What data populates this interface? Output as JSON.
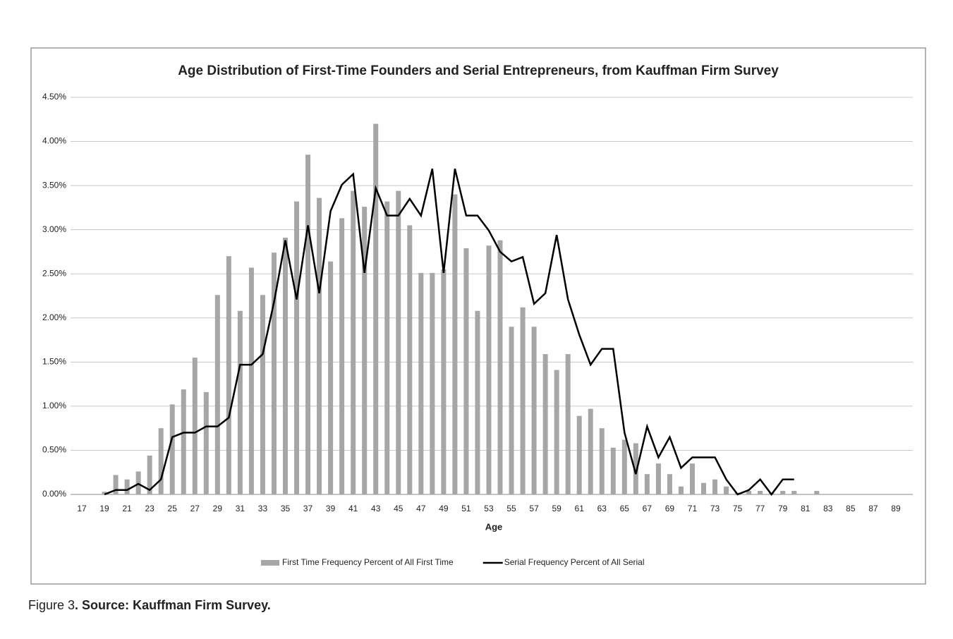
{
  "chart_data": {
    "type": "bar",
    "title": "Age Distribution of First-Time Founders and Serial Entrepreneurs, from Kauffman Firm Survey",
    "x_label": "Age",
    "categories": [
      17,
      null,
      19,
      null,
      21,
      null,
      23,
      null,
      25,
      null,
      27,
      null,
      29,
      null,
      31,
      null,
      33,
      null,
      35,
      null,
      37,
      null,
      39,
      null,
      41,
      null,
      43,
      null,
      45,
      null,
      47,
      null,
      49,
      null,
      51,
      null,
      53,
      null,
      55,
      null,
      57,
      null,
      59,
      null,
      61,
      null,
      63,
      null,
      65,
      null,
      67,
      null,
      69,
      null,
      71,
      null,
      73,
      null,
      75,
      null,
      77,
      null,
      79,
      null,
      81,
      null,
      83,
      null,
      85,
      null,
      87,
      null,
      89,
      null
    ],
    "series": [
      {
        "name": "First Time Frequency Percent of All First Time",
        "type": "bar",
        "color": "#a6a6a6",
        "values": [
          null,
          null,
          0.03,
          0.22,
          0.17,
          0.26,
          0.44,
          0.75,
          1.02,
          1.19,
          1.55,
          1.16,
          2.26,
          2.7,
          2.08,
          2.57,
          2.26,
          2.74,
          2.91,
          3.32,
          3.85,
          3.36,
          2.64,
          3.13,
          3.44,
          3.26,
          4.2,
          3.32,
          3.44,
          3.05,
          2.51,
          2.51,
          2.55,
          3.4,
          2.79,
          2.08,
          2.82,
          2.88,
          1.9,
          2.12,
          1.9,
          1.59,
          1.41,
          1.59,
          0.89,
          0.97,
          0.75,
          0.53,
          0.62,
          0.58,
          0.23,
          0.35,
          0.23,
          0.09,
          0.35,
          0.13,
          0.17,
          0.09,
          0.02,
          0.04,
          0.04,
          0.02,
          0.04,
          0.04,
          0,
          0.04,
          null,
          null,
          null,
          null,
          null,
          null,
          null,
          null
        ]
      },
      {
        "name": "Serial Frequency Percent of All Serial",
        "type": "line",
        "color": "#000000",
        "values": [
          null,
          null,
          0,
          0.05,
          0.05,
          0.12,
          0.05,
          0.17,
          0.65,
          0.7,
          0.7,
          0.77,
          0.77,
          0.87,
          1.47,
          1.47,
          1.59,
          2.18,
          2.88,
          2.21,
          3.05,
          2.28,
          3.21,
          3.51,
          3.63,
          2.51,
          3.47,
          3.16,
          3.16,
          3.35,
          3.16,
          3.69,
          2.51,
          3.69,
          3.16,
          3.16,
          2.99,
          2.75,
          2.64,
          2.69,
          2.16,
          2.28,
          2.94,
          2.21,
          1.81,
          1.47,
          1.65,
          1.65,
          0.7,
          0.23,
          0.77,
          0.42,
          0.65,
          0.3,
          0.42,
          0.42,
          0.42,
          0.17,
          0,
          0.05,
          0.17,
          0,
          0.17,
          0.17,
          null,
          null,
          null,
          null,
          null,
          null,
          null,
          null,
          null,
          null
        ]
      }
    ],
    "ylim": [
      0,
      4.5
    ],
    "yticks": [
      {
        "value": 0,
        "label": "0.00%"
      },
      {
        "value": 0.5,
        "label": "0.50%"
      },
      {
        "value": 1,
        "label": "1.00%"
      },
      {
        "value": 1.5,
        "label": "1.50%"
      },
      {
        "value": 2,
        "label": "2.00%"
      },
      {
        "value": 2.5,
        "label": "2.50%"
      },
      {
        "value": 3,
        "label": "3.00%"
      },
      {
        "value": 3.5,
        "label": "3.50%"
      },
      {
        "value": 4,
        "label": "4.00%"
      },
      {
        "value": 4.5,
        "label": "4.50%"
      }
    ],
    "grid": true,
    "legend": "bottom"
  },
  "caption": {
    "label": "Figure 3",
    "text": ". Source: Kauffman Firm Survey."
  }
}
